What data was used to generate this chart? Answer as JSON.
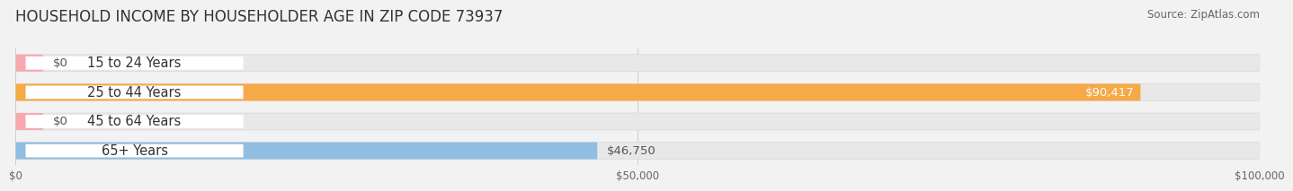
{
  "title": "HOUSEHOLD INCOME BY HOUSEHOLDER AGE IN ZIP CODE 73937",
  "source": "Source: ZipAtlas.com",
  "categories": [
    "15 to 24 Years",
    "25 to 44 Years",
    "45 to 64 Years",
    "65+ Years"
  ],
  "values": [
    0,
    90417,
    0,
    46750
  ],
  "bar_colors": [
    "#f9a8b0",
    "#f5a947",
    "#f9a8b0",
    "#90bde0"
  ],
  "value_labels": [
    "$0",
    "$90,417",
    "$0",
    "$46,750"
  ],
  "value_label_inside": [
    false,
    true,
    false,
    false
  ],
  "value_label_colors_inside": [
    "#555555",
    "#ffffff",
    "#555555",
    "#555555"
  ],
  "xlim": [
    0,
    100000
  ],
  "xticks": [
    0,
    50000,
    100000
  ],
  "xtick_labels": [
    "$0",
    "$50,000",
    "$100,000"
  ],
  "background_color": "#f2f2f2",
  "bar_bg_color": "#e8e8e8",
  "title_fontsize": 12,
  "label_fontsize": 10.5,
  "value_fontsize": 9.5,
  "source_fontsize": 8.5,
  "bar_height": 0.58,
  "bar_bg_edge_color": "#d8d8d8"
}
